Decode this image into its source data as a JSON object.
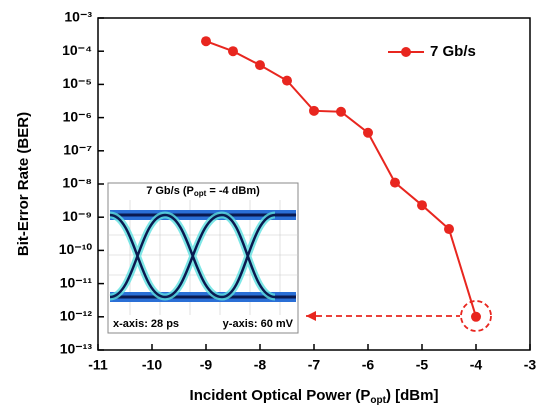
{
  "chart_data": {
    "type": "line",
    "x_label": [
      "Incident Optical Power (P",
      "opt",
      ") [dBm]"
    ],
    "y_label": "Bit-Error Rate (BER)",
    "x": [
      -9,
      -8.5,
      -8,
      -7.5,
      -7,
      -6.5,
      -6,
      -5.5,
      -5,
      -4.5,
      -4
    ],
    "series": [
      {
        "name": "7 Gb/s",
        "color": "#e8261f",
        "values": [
          0.0002,
          0.0001,
          3.8e-05,
          1.3e-05,
          1.6e-06,
          1.5e-06,
          3.5e-07,
          1.1e-08,
          2.3e-09,
          4.4e-10,
          1e-12
        ]
      }
    ],
    "xlim": [
      -11,
      -3
    ],
    "xticks": [
      -11,
      -10,
      -9,
      -8,
      -7,
      -6,
      -5,
      -4,
      -3
    ],
    "ylim": [
      1e-13,
      0.001
    ],
    "log_y": true,
    "yticks": [
      {
        "value": 0.001,
        "label": "10⁻³"
      },
      {
        "value": 0.0001,
        "label": "10⁻⁴"
      },
      {
        "value": 1e-05,
        "label": "10⁻⁵"
      },
      {
        "value": 1e-06,
        "label": "10⁻⁶"
      },
      {
        "value": 1e-07,
        "label": "10⁻⁷"
      },
      {
        "value": 1e-08,
        "label": "10⁻⁸"
      },
      {
        "value": 1e-09,
        "label": "10⁻⁹"
      },
      {
        "value": 1e-10,
        "label": "10⁻¹⁰"
      },
      {
        "value": 1e-11,
        "label": "10⁻¹¹"
      },
      {
        "value": 1e-12,
        "label": "10⁻¹²"
      },
      {
        "value": 1e-13,
        "label": "10⁻¹³"
      }
    ],
    "legend": "upper right",
    "inset": {
      "title": [
        "7 Gb/s (P",
        "opt",
        " = -4 dBm)"
      ],
      "x_scale": "x-axis: 28 ps",
      "y_scale": "y-axis: 60 mV"
    }
  }
}
